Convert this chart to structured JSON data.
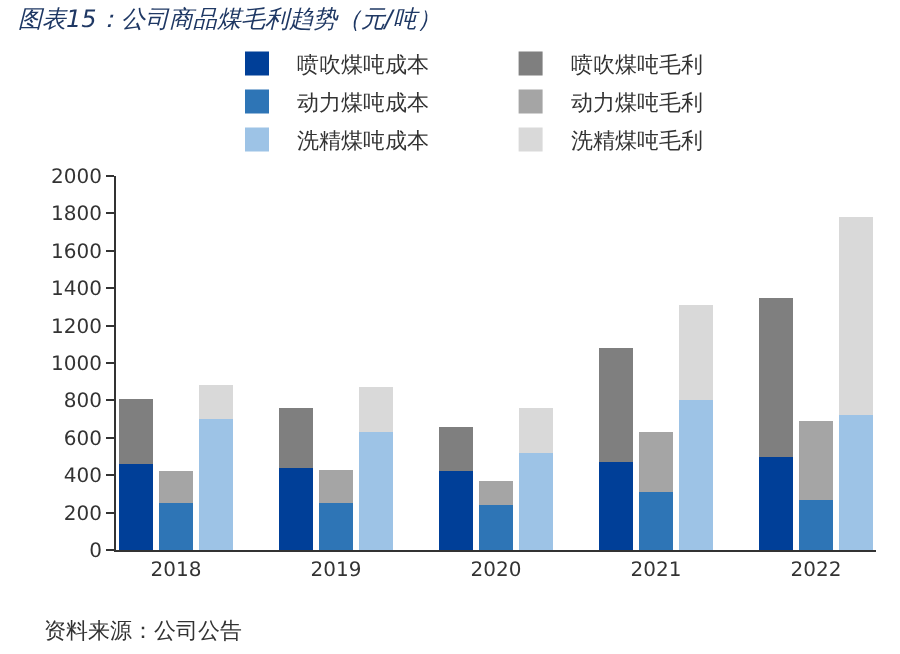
{
  "chart_data": {
    "type": "bar",
    "title": "图表15：公司商品煤毛利趋势（元/吨）",
    "stacked": true,
    "categories": [
      null,
      "2018",
      null,
      null,
      null,
      "2019",
      null,
      null,
      null,
      "2020",
      null,
      null,
      null,
      "2021",
      null,
      null,
      null,
      "2022",
      null
    ],
    "series": [
      {
        "name": "喷吹煤吨成本",
        "color": "#003f98",
        "values": [
          460,
          null,
          null,
          null,
          440,
          null,
          null,
          null,
          420,
          null,
          null,
          null,
          470,
          null,
          null,
          null,
          500,
          null,
          null
        ]
      },
      {
        "name": "喷吹煤吨毛利",
        "color": "#7f7f7f",
        "values": [
          350,
          null,
          null,
          null,
          320,
          null,
          null,
          null,
          240,
          null,
          null,
          null,
          610,
          null,
          null,
          null,
          850,
          null,
          null
        ]
      },
      {
        "name": "动力煤吨成本",
        "color": "#2e75b6",
        "values": [
          null,
          250,
          null,
          null,
          null,
          250,
          null,
          null,
          null,
          240,
          null,
          null,
          null,
          310,
          null,
          null,
          null,
          270,
          null
        ]
      },
      {
        "name": "动力煤吨毛利",
        "color": "#a5a5a5",
        "values": [
          null,
          170,
          null,
          null,
          null,
          180,
          null,
          null,
          null,
          130,
          null,
          null,
          null,
          320,
          null,
          null,
          null,
          420,
          null
        ]
      },
      {
        "name": "洗精煤吨成本",
        "color": "#9dc3e6",
        "values": [
          null,
          null,
          700,
          null,
          null,
          null,
          630,
          null,
          null,
          null,
          520,
          null,
          null,
          null,
          800,
          null,
          null,
          null,
          720
        ]
      },
      {
        "name": "洗精煤吨毛利",
        "color": "#d9d9d9",
        "values": [
          null,
          null,
          180,
          null,
          null,
          null,
          240,
          null,
          null,
          null,
          240,
          null,
          null,
          null,
          510,
          null,
          null,
          null,
          1060
        ]
      }
    ],
    "ylim": [
      0,
      2000
    ],
    "yticks": [
      0,
      200,
      400,
      600,
      800,
      1000,
      1200,
      1400,
      1600,
      1800,
      2000
    ],
    "grid": false,
    "legend": "top",
    "annotations": [
      "资料来源：公司公告"
    ]
  }
}
